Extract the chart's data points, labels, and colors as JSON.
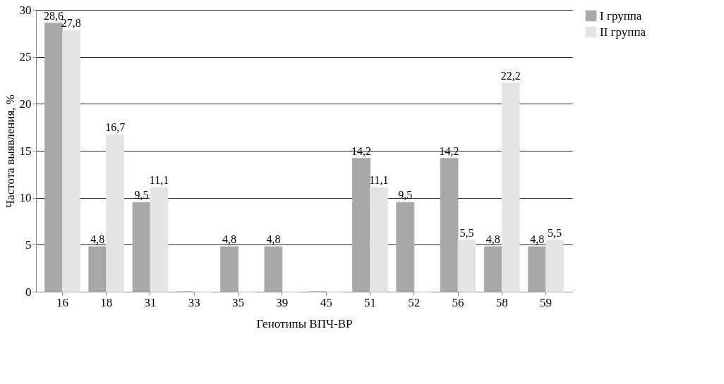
{
  "chart_data": {
    "type": "bar",
    "xlabel": "Генотипы ВПЧ-ВР",
    "ylabel": "Частота выявления, %",
    "categories": [
      "16",
      "18",
      "31",
      "33",
      "35",
      "39",
      "45",
      "51",
      "52",
      "56",
      "58",
      "59"
    ],
    "series": [
      {
        "name": "I группа",
        "color": "#a8a8a8",
        "values": [
          28.6,
          4.8,
          9.5,
          0,
          4.8,
          4.8,
          0,
          14.2,
          9.5,
          14.2,
          4.8,
          4.8
        ],
        "value_labels": [
          "28,6",
          "4,8",
          "9,5",
          null,
          "4,8",
          "4,8",
          null,
          "14,2",
          "9,5",
          "14,2",
          "4,8",
          "4,8"
        ]
      },
      {
        "name": "II группа",
        "color": "#e4e4e4",
        "values": [
          27.8,
          16.7,
          11.1,
          0,
          0,
          0,
          0,
          11.1,
          0,
          5.5,
          22.2,
          5.5
        ],
        "value_labels": [
          "27,8",
          "16,7",
          "11,1",
          null,
          null,
          null,
          null,
          "11,1",
          null,
          "5,5",
          "22,2",
          "5,5"
        ]
      }
    ],
    "ylim": [
      0,
      30
    ],
    "yticks": [
      0,
      5,
      10,
      15,
      20,
      25,
      30
    ],
    "grid": "y",
    "legend": "right"
  }
}
